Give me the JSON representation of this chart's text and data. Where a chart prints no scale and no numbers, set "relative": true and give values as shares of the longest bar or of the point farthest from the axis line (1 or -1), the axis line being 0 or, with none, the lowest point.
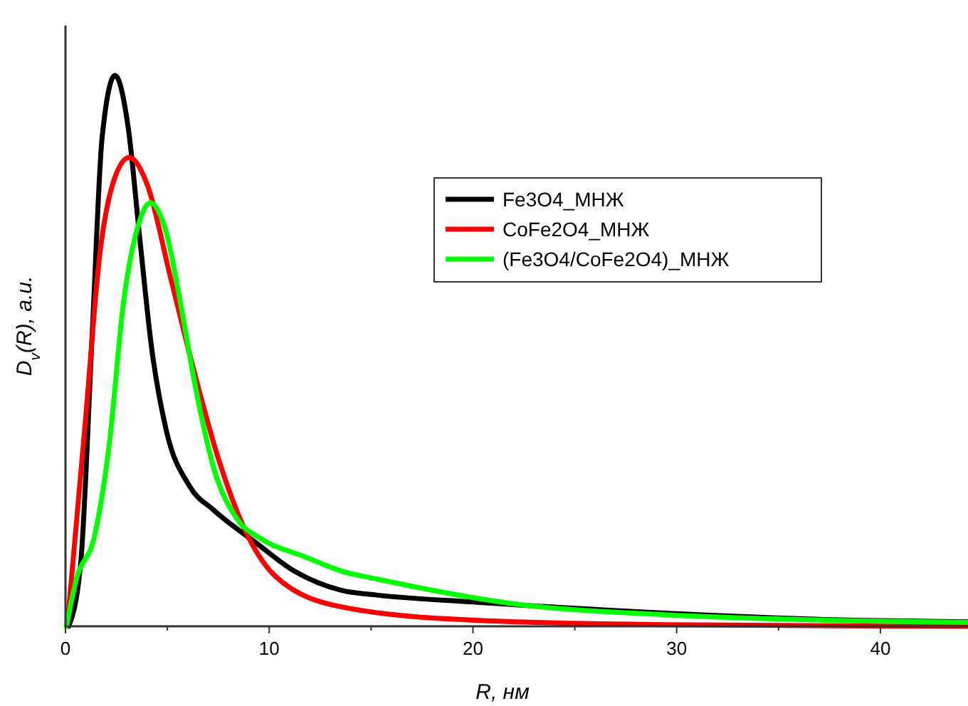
{
  "chart_data": {
    "type": "line",
    "relative": true,
    "xlabel": "R, нм",
    "ylabel": "D$_{v}$(R), a.u.",
    "xlim": [
      0,
      44.3
    ],
    "xticks": [
      0,
      {
        "value": 5,
        "label": null
      },
      10,
      {
        "value": 15,
        "label": null
      },
      20,
      {
        "value": 25,
        "label": null
      },
      30,
      {
        "value": 35,
        "label": null
      },
      40
    ],
    "legend": "top right",
    "grid": false,
    "line_style": "solid",
    "marker": "none",
    "series": [
      {
        "name": "Fe3O4_МНЖ",
        "color": "#000000",
        "x": [
          0.16,
          0.75,
          1.33,
          1.8,
          2.43,
          3.08,
          3.66,
          4.24,
          4.94,
          6.1,
          7.27,
          9.37,
          11.24,
          13.57,
          15.2,
          20.1,
          29.4,
          38.7,
          44.3
        ],
        "values": [
          0,
          0.116,
          0.545,
          0.888,
          1,
          0.905,
          0.699,
          0.502,
          0.357,
          0.254,
          0.211,
          0.151,
          0.1,
          0.065,
          0.057,
          0.044,
          0.024,
          0.011,
          0.008
        ]
      },
      {
        "name": "CoFe2O4_МНЖ",
        "color": "#ff0000",
        "x": [
          0.1,
          0.98,
          1.68,
          2.38,
          3.13,
          4.01,
          5.17,
          6.34,
          7.5,
          8.9,
          10.3,
          13.57,
          20.1,
          29.4,
          44.3
        ],
        "values": [
          0.005,
          0.374,
          0.674,
          0.81,
          0.851,
          0.802,
          0.631,
          0.459,
          0.305,
          0.168,
          0.091,
          0.035,
          0.011,
          0.003,
          0
        ]
      },
      {
        "name": "(Fe3O4/CoFe2O4)_МНЖ",
        "color": "#00ff00",
        "x": [
          0.05,
          0.51,
          1.45,
          2.15,
          2.85,
          3.55,
          4.17,
          4.94,
          5.64,
          6.34,
          7.27,
          8.44,
          9.6,
          11.7,
          13.57,
          15.4,
          22.4,
          29.4,
          38.7,
          44.3
        ],
        "values": [
          0,
          0.082,
          0.168,
          0.331,
          0.589,
          0.725,
          0.769,
          0.716,
          0.588,
          0.442,
          0.288,
          0.194,
          0.159,
          0.127,
          0.1,
          0.085,
          0.039,
          0.021,
          0.01,
          0.007
        ]
      }
    ]
  }
}
